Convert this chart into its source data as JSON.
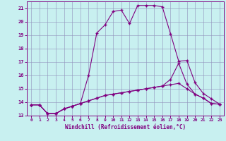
{
  "xlabel": "Windchill (Refroidissement éolien,°C)",
  "background_color": "#c8f0f0",
  "line_color": "#800080",
  "xlim": [
    -0.5,
    23.5
  ],
  "ylim": [
    13,
    21.5
  ],
  "yticks": [
    13,
    14,
    15,
    16,
    17,
    18,
    19,
    20,
    21
  ],
  "xticks": [
    0,
    1,
    2,
    3,
    4,
    5,
    6,
    7,
    8,
    9,
    10,
    11,
    12,
    13,
    14,
    15,
    16,
    17,
    18,
    19,
    20,
    21,
    22,
    23
  ],
  "line1_x": [
    0,
    1,
    2,
    3,
    4,
    5,
    6,
    7,
    8,
    9,
    10,
    11,
    12,
    13,
    14,
    15,
    16,
    17,
    18,
    19,
    20,
    21,
    22,
    23
  ],
  "line1_y": [
    13.8,
    13.8,
    13.15,
    13.15,
    13.5,
    13.7,
    13.9,
    14.1,
    14.3,
    14.5,
    14.6,
    14.7,
    14.8,
    14.9,
    15.0,
    15.1,
    15.2,
    15.3,
    15.4,
    15.0,
    14.6,
    14.3,
    13.9,
    13.85
  ],
  "line2_x": [
    0,
    1,
    2,
    3,
    4,
    5,
    6,
    7,
    8,
    9,
    10,
    11,
    12,
    13,
    14,
    15,
    16,
    17,
    18,
    19,
    20,
    21,
    22,
    23
  ],
  "line2_y": [
    13.8,
    13.8,
    13.15,
    13.15,
    13.5,
    13.7,
    13.9,
    16.0,
    19.15,
    19.75,
    20.75,
    20.85,
    19.85,
    21.2,
    21.2,
    21.2,
    21.1,
    19.1,
    17.05,
    17.1,
    15.45,
    14.65,
    14.25,
    13.85
  ],
  "line3_x": [
    0,
    1,
    2,
    3,
    4,
    5,
    6,
    7,
    8,
    9,
    10,
    11,
    12,
    13,
    14,
    15,
    16,
    17,
    18,
    19,
    20,
    21,
    22,
    23
  ],
  "line3_y": [
    13.8,
    13.8,
    13.15,
    13.15,
    13.5,
    13.7,
    13.9,
    14.1,
    14.3,
    14.5,
    14.6,
    14.7,
    14.8,
    14.9,
    15.0,
    15.1,
    15.2,
    15.7,
    16.9,
    15.35,
    14.6,
    14.3,
    13.9,
    13.85
  ]
}
